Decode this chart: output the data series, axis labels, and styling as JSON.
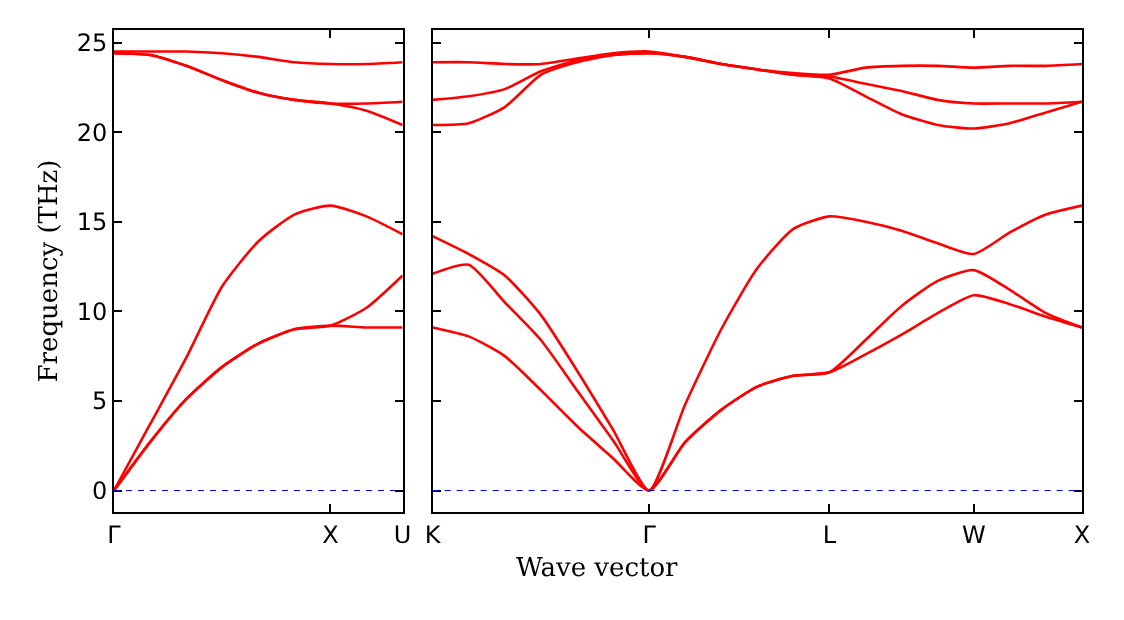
{
  "chart_data": [
    {
      "type": "line",
      "ylabel": "Frequency (THz)",
      "categories": [
        "Γ",
        null,
        null,
        null,
        null,
        null,
        "X",
        null,
        "U"
      ],
      "series": [
        {
          "color": "#ff0000",
          "values": [
            0,
            2.7,
            5.1,
            6.9,
            8.2,
            9.0,
            9.2,
            9.1,
            9.1
          ]
        },
        {
          "color": "#ff0000",
          "values": [
            0,
            2.7,
            5.1,
            6.9,
            8.2,
            9.0,
            9.2,
            10.2,
            12.0
          ]
        },
        {
          "color": "#ff0000",
          "values": [
            0,
            3.7,
            7.4,
            11.4,
            13.9,
            15.4,
            15.9,
            15.3,
            14.3
          ]
        },
        {
          "color": "#ff0000",
          "values": [
            24.4,
            24.3,
            23.7,
            22.9,
            22.2,
            21.8,
            21.6,
            21.2,
            20.4
          ]
        },
        {
          "color": "#ff0000",
          "values": [
            24.4,
            24.3,
            23.7,
            22.9,
            22.2,
            21.8,
            21.6,
            21.6,
            21.7
          ]
        },
        {
          "color": "#ff0000",
          "values": [
            24.5,
            24.5,
            24.5,
            24.4,
            24.2,
            23.9,
            23.8,
            23.8,
            23.9
          ]
        }
      ],
      "ylim": [
        -1.2,
        25.7
      ],
      "yticks": [
        0,
        5,
        10,
        15,
        20,
        25
      ],
      "ref_lines": [
        {
          "axis": "y",
          "value": 0,
          "color": "#0000ff",
          "line_style": "dotted"
        }
      ],
      "marker": "none",
      "line_style": "solid"
    },
    {
      "type": "line",
      "xlabel": "Wave vector",
      "categories": [
        "K",
        null,
        null,
        null,
        null,
        null,
        "Γ",
        null,
        null,
        null,
        null,
        "L",
        null,
        null,
        null,
        "W",
        null,
        null,
        "X"
      ],
      "series": [
        {
          "color": "#ff0000",
          "values": [
            9.1,
            8.6,
            7.5,
            5.6,
            3.6,
            1.8,
            0,
            2.7,
            4.5,
            5.8,
            6.4,
            6.6,
            7.6,
            8.7,
            9.9,
            10.9,
            10.4,
            9.7,
            9.1
          ]
        },
        {
          "color": "#ff0000",
          "values": [
            12.1,
            12.6,
            10.5,
            8.4,
            5.6,
            2.8,
            0,
            2.7,
            4.5,
            5.8,
            6.4,
            6.6,
            8.4,
            10.3,
            11.7,
            12.3,
            11.2,
            9.9,
            9.1
          ]
        },
        {
          "color": "#ff0000",
          "values": [
            14.2,
            13.2,
            12.0,
            9.8,
            6.7,
            3.4,
            0,
            4.8,
            9.0,
            12.4,
            14.6,
            15.3,
            15.0,
            14.5,
            13.8,
            13.2,
            14.4,
            15.4,
            15.9
          ]
        },
        {
          "color": "#ff0000",
          "values": [
            20.4,
            20.5,
            21.4,
            23.2,
            23.9,
            24.3,
            24.4,
            24.2,
            23.8,
            23.5,
            23.2,
            23.0,
            22.0,
            21.0,
            20.4,
            20.2,
            20.5,
            21.1,
            21.7
          ]
        },
        {
          "color": "#ff0000",
          "values": [
            21.8,
            22.0,
            22.4,
            23.4,
            24.0,
            24.3,
            24.4,
            24.2,
            23.8,
            23.5,
            23.2,
            23.1,
            22.7,
            22.3,
            21.8,
            21.6,
            21.6,
            21.6,
            21.7
          ]
        },
        {
          "color": "#ff0000",
          "values": [
            23.9,
            23.9,
            23.8,
            23.8,
            24.1,
            24.4,
            24.5,
            24.2,
            23.8,
            23.5,
            23.3,
            23.2,
            23.6,
            23.7,
            23.7,
            23.6,
            23.7,
            23.7,
            23.8
          ]
        }
      ],
      "ylim": [
        -1.2,
        25.7
      ],
      "yticks": [
        0,
        5,
        10,
        15,
        20,
        25
      ],
      "tick_labels": "x",
      "ref_lines": [
        {
          "axis": "y",
          "value": 0,
          "color": "#0000ff",
          "line_style": "dotted"
        }
      ],
      "marker": "none",
      "line_style": "solid"
    }
  ]
}
